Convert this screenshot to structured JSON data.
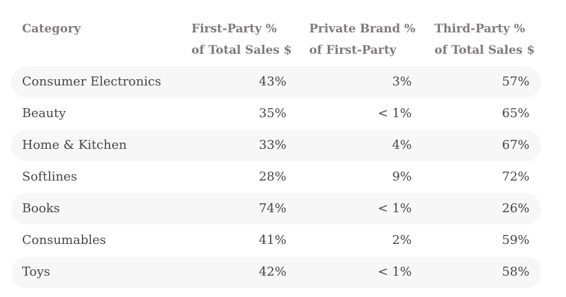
{
  "chart_data": {
    "type": "table",
    "columns": [
      {
        "line1": "Category",
        "line2": ""
      },
      {
        "line1": "First-Party %",
        "line2": "of Total Sales $"
      },
      {
        "line1": "Private Brand %",
        "line2": "of First-Party"
      },
      {
        "line1": "Third-Party %",
        "line2": "of Total Sales $"
      }
    ],
    "rows": [
      [
        "Consumer Electronics",
        "43%",
        "3%",
        "57%"
      ],
      [
        "Beauty",
        "35%",
        "< 1%",
        "65%"
      ],
      [
        "Home & Kitchen",
        "33%",
        "4%",
        "67%"
      ],
      [
        "Softlines",
        "28%",
        "9%",
        "72%"
      ],
      [
        "Books",
        "74%",
        "< 1%",
        "26%"
      ],
      [
        "Consumables",
        "41%",
        "2%",
        "59%"
      ],
      [
        "Toys",
        "42%",
        "< 1%",
        "58%"
      ]
    ]
  },
  "colors": {
    "header_text": "#7d7a7a",
    "body_text": "#464646",
    "row_shade": "#f7f7f8"
  }
}
